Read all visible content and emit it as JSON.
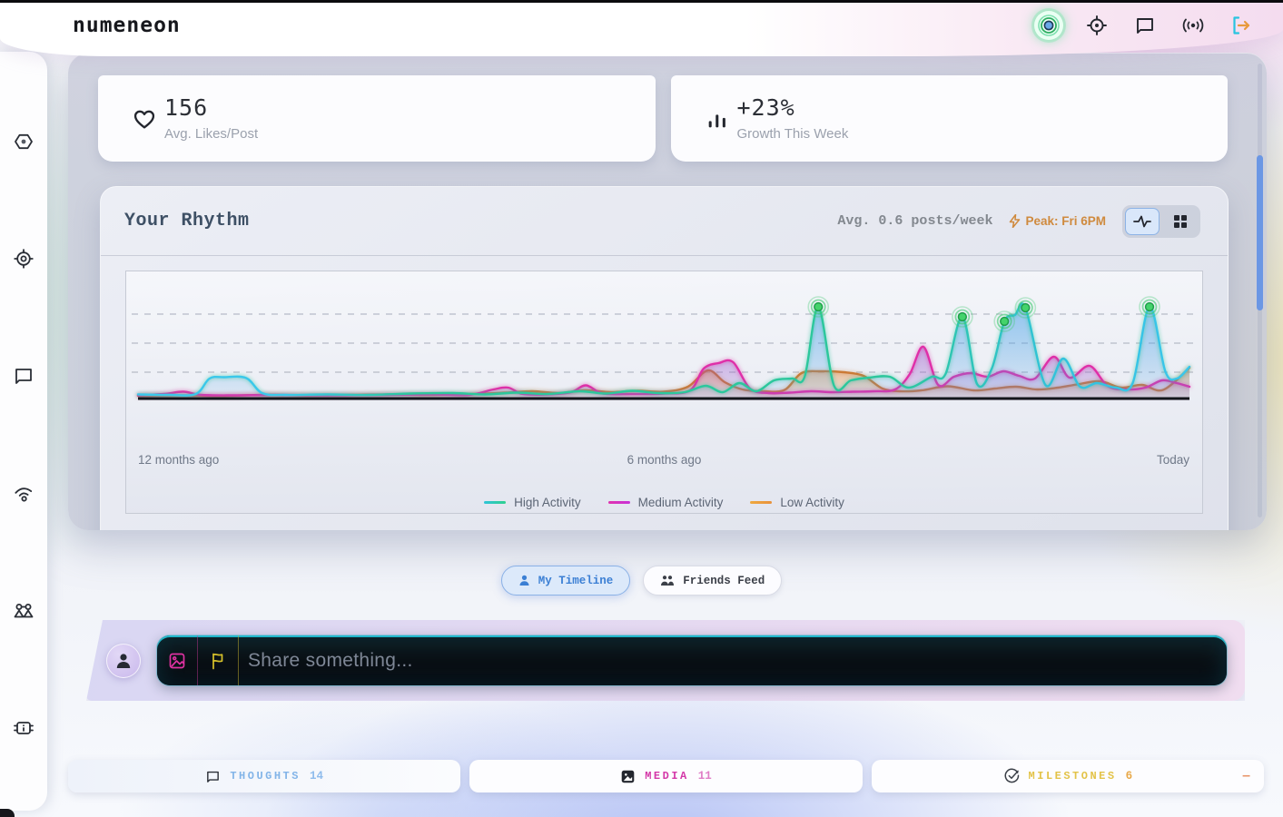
{
  "header": {
    "logo": "numeneon",
    "icons": [
      "focus-rings",
      "locate",
      "chat",
      "broadcast",
      "logout"
    ]
  },
  "sidebar": {
    "items": [
      "hexagon-node",
      "locate-target",
      "messages",
      "wifi-signal",
      "friends-network",
      "system-chip"
    ]
  },
  "stats": [
    {
      "icon": "heart",
      "value": "156",
      "label": "Avg. Likes/Post"
    },
    {
      "icon": "bar-chart",
      "value": "+23%",
      "label": "Growth This Week"
    }
  ],
  "rhythm": {
    "title": "Your Rhythm",
    "avg_label": "Avg. 0.6 posts/week",
    "peak_label": "Peak: Fri 6PM",
    "views": [
      "pulse",
      "grid"
    ]
  },
  "chart_data": {
    "type": "area",
    "x_axis_labels": [
      "12 months ago",
      "6 months ago",
      "Today"
    ],
    "x_range_pct": [
      0,
      100
    ],
    "y_unit": "activity (posts/week)",
    "ylim": [
      0,
      14
    ],
    "grid": "dashed-horizontal",
    "grid_y": [
      2.8,
      6.0,
      9.2
    ],
    "legend_position": "bottom-center",
    "series": [
      {
        "name": "High Activity",
        "stroke": "gradient-cyan-teal",
        "stroke_stops": [
          [
            "0%",
            "#3ac8ea"
          ],
          [
            "14%",
            "#3ac8ea"
          ],
          [
            "26%",
            "#2cc79c"
          ],
          [
            "72%",
            "#2cc79c"
          ],
          [
            "88%",
            "#31c2de"
          ],
          [
            "100%",
            "#3ac6ec"
          ]
        ],
        "fill_top": "rgba(70,160,230,0.58)",
        "fill_bottom": "rgba(70,160,230,0.08)",
        "glow": "rgba(46,199,158,0.75)",
        "swatch": [
          "#2fc4d8",
          "#2fd08e"
        ],
        "points": [
          [
            0,
            0.35
          ],
          [
            3,
            0.3
          ],
          [
            5.5,
            0.4
          ],
          [
            6.8,
            2.1
          ],
          [
            8.2,
            2.25
          ],
          [
            10.3,
            2.15
          ],
          [
            11.8,
            0.5
          ],
          [
            14,
            0.3
          ],
          [
            18,
            0.35
          ],
          [
            22,
            0.3
          ],
          [
            26,
            0.45
          ],
          [
            30,
            0.5
          ],
          [
            33,
            0.35
          ],
          [
            36,
            0.55
          ],
          [
            39,
            0.4
          ],
          [
            42,
            0.7
          ],
          [
            44.5,
            0.45
          ],
          [
            47,
            0.75
          ],
          [
            49.5,
            0.5
          ],
          [
            52,
            0.6
          ],
          [
            54,
            1.3
          ],
          [
            55.6,
            0.6
          ],
          [
            57.2,
            1.6
          ],
          [
            58.8,
            0.7
          ],
          [
            60.5,
            1.9
          ],
          [
            62.2,
            2.1
          ],
          [
            63.4,
            2.3
          ],
          [
            64.7,
            10
          ],
          [
            66.2,
            1.3
          ],
          [
            67.8,
            1.9
          ],
          [
            69.5,
            2.2
          ],
          [
            71.5,
            2.3
          ],
          [
            73.3,
            1.1
          ],
          [
            75.5,
            2.3
          ],
          [
            76.8,
            2.6
          ],
          [
            78.4,
            8.9
          ],
          [
            79.8,
            1.5
          ],
          [
            81.2,
            3.2
          ],
          [
            82.4,
            8.4
          ],
          [
            83.4,
            9.1
          ],
          [
            84.4,
            9.9
          ],
          [
            86.3,
            1.4
          ],
          [
            88,
            4.3
          ],
          [
            89.6,
            1.2
          ],
          [
            91.2,
            1.6
          ],
          [
            93,
            1.1
          ],
          [
            94.6,
            1.6
          ],
          [
            96.2,
            10
          ],
          [
            97.7,
            2.9
          ],
          [
            98.8,
            2.1
          ],
          [
            100,
            3.4
          ]
        ]
      },
      {
        "name": "Medium Activity",
        "stroke": "#df2fa8",
        "fill_top": "rgba(150,80,200,0.48)",
        "fill_bottom": "rgba(150,80,200,0.10)",
        "glow": "rgba(223,47,168,0.7)",
        "swatch": [
          "#e033ae",
          "#c832d8"
        ],
        "points": [
          [
            0,
            0.25
          ],
          [
            2.5,
            0.4
          ],
          [
            4.3,
            0.65
          ],
          [
            6,
            0.3
          ],
          [
            9,
            0.25
          ],
          [
            13,
            0.3
          ],
          [
            18,
            0.25
          ],
          [
            23,
            0.3
          ],
          [
            28,
            0.35
          ],
          [
            31.5,
            0.3
          ],
          [
            33.8,
            0.9
          ],
          [
            35.2,
            1.1
          ],
          [
            36.6,
            0.4
          ],
          [
            39,
            0.35
          ],
          [
            41.2,
            0.6
          ],
          [
            42.6,
            1.35
          ],
          [
            44.2,
            0.45
          ],
          [
            47,
            0.4
          ],
          [
            50,
            0.45
          ],
          [
            52.5,
            0.8
          ],
          [
            53.8,
            3.2
          ],
          [
            55.2,
            3.8
          ],
          [
            56.6,
            3.9
          ],
          [
            58.2,
            1.0
          ],
          [
            60,
            0.5
          ],
          [
            62,
            0.55
          ],
          [
            64,
            0.7
          ],
          [
            66,
            0.6
          ],
          [
            68,
            0.65
          ],
          [
            70,
            0.7
          ],
          [
            72,
            0.9
          ],
          [
            73.4,
            2.6
          ],
          [
            74.7,
            5.6
          ],
          [
            76.1,
            1.4
          ],
          [
            77.6,
            2.3
          ],
          [
            79.2,
            2.7
          ],
          [
            80.8,
            2.3
          ],
          [
            82.3,
            2.9
          ],
          [
            83.8,
            2.4
          ],
          [
            85.3,
            2.1
          ],
          [
            87.1,
            4.5
          ],
          [
            88.6,
            2.2
          ],
          [
            90.5,
            3.5
          ],
          [
            92.2,
            1.3
          ],
          [
            94,
            0.9
          ],
          [
            95.8,
            1.1
          ],
          [
            97.4,
            1.9
          ],
          [
            98.8,
            1.6
          ],
          [
            100,
            1.2
          ]
        ]
      },
      {
        "name": "Low Activity",
        "stroke": "#cb7a36",
        "fill_top": "rgba(232,150,80,0.55)",
        "fill_bottom": "rgba(232,150,80,0.12)",
        "glow": "rgba(203,122,54,0.55)",
        "swatch": [
          "#efa93f",
          "#e8913c"
        ],
        "points": [
          [
            0,
            0.2
          ],
          [
            4,
            0.25
          ],
          [
            8,
            0.2
          ],
          [
            12,
            0.3
          ],
          [
            16,
            0.25
          ],
          [
            20,
            0.3
          ],
          [
            24,
            0.35
          ],
          [
            28,
            0.3
          ],
          [
            32,
            0.4
          ],
          [
            35,
            0.55
          ],
          [
            37.5,
            0.7
          ],
          [
            40,
            0.5
          ],
          [
            42.5,
            0.8
          ],
          [
            45,
            0.6
          ],
          [
            47.5,
            0.75
          ],
          [
            50,
            0.65
          ],
          [
            52.3,
            1.2
          ],
          [
            54.2,
            3.0
          ],
          [
            55.8,
            1.7
          ],
          [
            57.5,
            0.9
          ],
          [
            59.5,
            0.7
          ],
          [
            61.5,
            0.85
          ],
          [
            63.1,
            2.7
          ],
          [
            65,
            2.9
          ],
          [
            67.1,
            2.8
          ],
          [
            69,
            2.4
          ],
          [
            70.8,
            1.0
          ],
          [
            72.5,
            0.7
          ],
          [
            74.5,
            0.8
          ],
          [
            77,
            1.25
          ],
          [
            79.5,
            0.8
          ],
          [
            81.5,
            1.0
          ],
          [
            83.5,
            1.2
          ],
          [
            85.5,
            0.9
          ],
          [
            87.5,
            1.1
          ],
          [
            89.3,
            1.45
          ],
          [
            91.5,
            1.8
          ],
          [
            93.5,
            1.1
          ],
          [
            95.5,
            1.4
          ],
          [
            97.5,
            0.85
          ],
          [
            100,
            3.3
          ]
        ]
      }
    ],
    "peak_markers": {
      "series": "High Activity",
      "color": "#44d36b",
      "ring_color": "rgba(60,200,110,0.6)",
      "points": [
        [
          64.7,
          10
        ],
        [
          78.4,
          8.9
        ],
        [
          82.4,
          8.4
        ],
        [
          84.4,
          9.9
        ],
        [
          96.2,
          10
        ]
      ]
    }
  },
  "tabs": [
    {
      "label": "My Timeline",
      "active": true
    },
    {
      "label": "Friends Feed",
      "active": false
    }
  ],
  "composer": {
    "placeholder": "Share something..."
  },
  "categories": [
    {
      "label": "THOUGHTS",
      "count": "14",
      "label_color": "#82b4e8",
      "count_color": "#8fbcec"
    },
    {
      "label": "MEDIA",
      "count": "11",
      "label_color": "#d438a8",
      "count_color": "#e07ec6"
    },
    {
      "label": "MILESTONES",
      "count": "6",
      "label_color": "#e3c348",
      "count_color": "#e8a848",
      "dash": "–",
      "dash_color": "#e89468"
    }
  ]
}
